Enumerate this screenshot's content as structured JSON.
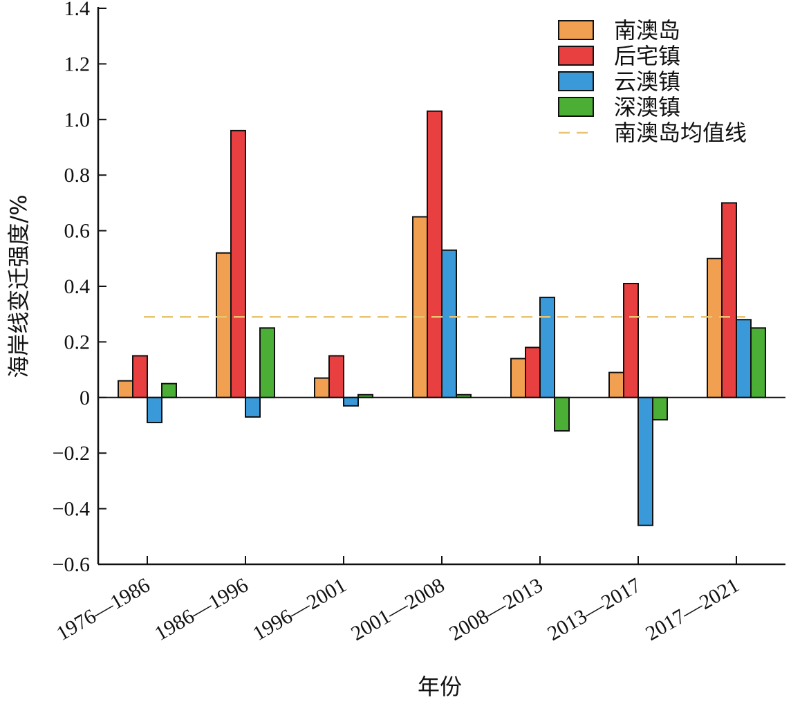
{
  "chart_data": {
    "type": "bar",
    "xlabel": "年份",
    "ylabel": "海岸线变迁强度/%",
    "categories": [
      "1976—1986",
      "1986—1996",
      "1996—2001",
      "2001—2008",
      "2008—2013",
      "2013—2017",
      "2017—2021"
    ],
    "ylim": [
      -0.6,
      1.4
    ],
    "yticks": [
      -0.6,
      -0.4,
      -0.2,
      0,
      0.2,
      0.4,
      0.6,
      0.8,
      1.0,
      1.2,
      1.4
    ],
    "ytick_labels": [
      "−0.6",
      "−0.4",
      "−0.2",
      "0",
      "0.2",
      "0.4",
      "0.6",
      "0.8",
      "1.0",
      "1.2",
      "1.4"
    ],
    "series": [
      {
        "name": "南澳岛",
        "color": "#F0A050",
        "values": [
          0.06,
          0.52,
          0.07,
          0.65,
          0.14,
          0.09,
          0.5
        ]
      },
      {
        "name": "后宅镇",
        "color": "#E84040",
        "values": [
          0.15,
          0.96,
          0.15,
          1.03,
          0.18,
          0.41,
          0.7
        ]
      },
      {
        "name": "云澳镇",
        "color": "#3A9AD9",
        "values": [
          -0.09,
          -0.07,
          -0.03,
          0.53,
          0.36,
          -0.46,
          0.28
        ]
      },
      {
        "name": "深澳镇",
        "color": "#4CAF35",
        "values": [
          0.05,
          0.25,
          0.01,
          0.01,
          -0.12,
          -0.08,
          0.25
        ]
      }
    ],
    "reference_line": {
      "name": "南澳岛均值线",
      "value": 0.29,
      "color": "#E8C470",
      "style": "dashed"
    },
    "legend_position": "top-right",
    "grid": false
  }
}
